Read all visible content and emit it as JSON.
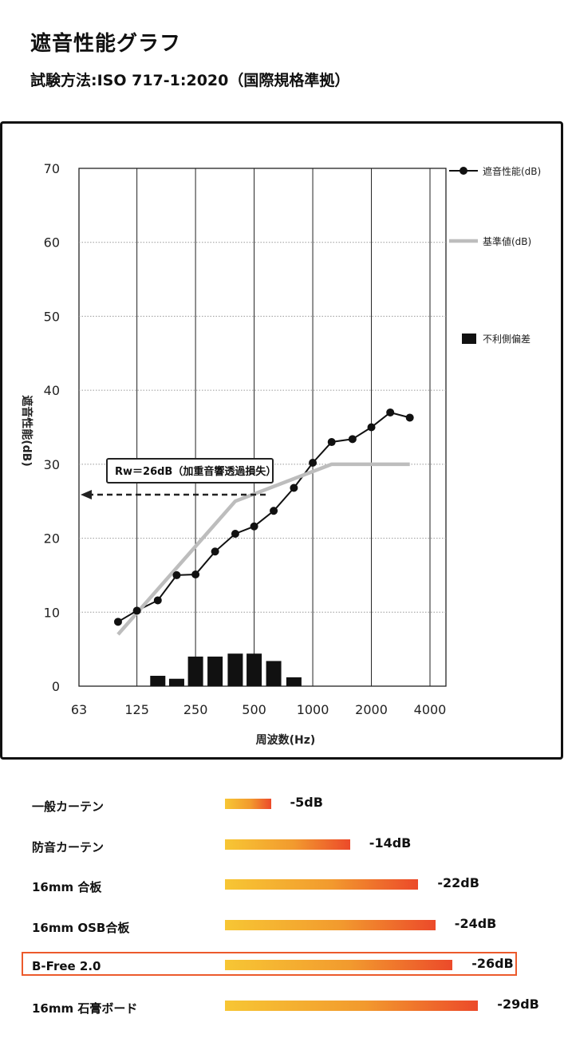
{
  "title": "遮音性能グラフ",
  "subtitle": "試験方法:ISO 717-1:2020（国際規格準拠）",
  "chart_data": {
    "type": "line",
    "ylabel": "遮音性能(dB)",
    "xlabel": "周波数(Hz)",
    "ylim": [
      0,
      70
    ],
    "y_ticks": [
      "0",
      "10",
      "20",
      "30",
      "40",
      "50",
      "60",
      "70"
    ],
    "x_ticks": [
      "63",
      "125",
      "250",
      "500",
      "1000",
      "2000",
      "4000"
    ],
    "grid": true,
    "legend_position": "right",
    "legend": [
      "遮音性能(dB)",
      "基準値(dB)",
      "不利側偏差"
    ],
    "annotation": "Rw＝26dB（加重音響透過損失）",
    "rw_value": 26,
    "series": [
      {
        "name": "遮音性能(dB)",
        "x": [
          100,
          125,
          160,
          200,
          250,
          315,
          400,
          500,
          630,
          800,
          1000,
          1250,
          1600,
          2000,
          2500,
          3150
        ],
        "values": [
          8.7,
          10.2,
          11.6,
          15,
          15.1,
          18.2,
          20.6,
          21.6,
          23.7,
          26.8,
          30.2,
          33,
          33.4,
          35,
          37,
          36.3
        ],
        "color": "#111111"
      },
      {
        "name": "基準値(dB)",
        "x": [
          100,
          400,
          1250,
          3150
        ],
        "values": [
          7,
          25,
          30,
          30
        ],
        "color": "#bdbdbd"
      }
    ],
    "deviation_bars": {
      "name": "不利側偏差",
      "x": [
        160,
        200,
        250,
        315,
        400,
        500,
        630,
        800
      ],
      "values": [
        1.4,
        1,
        4,
        4,
        4.4,
        4.4,
        3.4,
        1.2
      ],
      "color": "#111111"
    }
  },
  "comparison": [
    {
      "label": "一般カーテン",
      "value": "-5dB",
      "db": 5
    },
    {
      "label": "防音カーテン",
      "value": "-14dB",
      "db": 14
    },
    {
      "label": "16mm 合板",
      "value": "-22dB",
      "db": 22
    },
    {
      "label": "16mm OSB合板",
      "value": "-24dB",
      "db": 24
    },
    {
      "label": "B-Free 2.0",
      "value": "-26dB",
      "db": 26,
      "highlight": true
    },
    {
      "label": "16mm 石膏ボード",
      "value": "-29dB",
      "db": 29
    }
  ],
  "colors": {
    "accent": "#ec5a2c",
    "bar_start": "#f7c634",
    "bar_end": "#ec4a2a",
    "reference_line": "#bdbdbd"
  }
}
